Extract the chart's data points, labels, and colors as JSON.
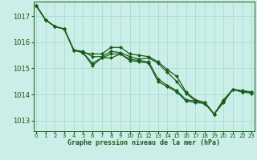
{
  "xlabel": "Graphe pression niveau de la mer (hPa)",
  "ylim": [
    1012.6,
    1017.55
  ],
  "xlim": [
    -0.3,
    23.3
  ],
  "yticks": [
    1013,
    1014,
    1015,
    1016,
    1017
  ],
  "xticks": [
    0,
    1,
    2,
    3,
    4,
    5,
    6,
    7,
    8,
    9,
    10,
    11,
    12,
    13,
    14,
    15,
    16,
    17,
    18,
    19,
    20,
    21,
    22,
    23
  ],
  "background_color": "#cceee8",
  "grid_color": "#99ddcc",
  "line_color": "#1a5c1a",
  "series": [
    [
      1017.4,
      1016.85,
      1016.6,
      1016.5,
      1015.7,
      1015.6,
      1015.2,
      1015.4,
      1015.55,
      1015.55,
      1015.35,
      1015.3,
      1015.25,
      1014.6,
      1014.35,
      1014.15,
      1013.8,
      1013.75,
      1013.7,
      1013.25,
      1013.75,
      1014.2,
      1014.15,
      1014.1
    ],
    [
      1017.4,
      1016.85,
      1016.6,
      1016.5,
      1015.7,
      1015.65,
      1015.45,
      1015.45,
      1015.65,
      1015.6,
      1015.45,
      1015.35,
      1015.4,
      1015.2,
      1014.85,
      1014.5,
      1014.05,
      1013.75,
      1013.7,
      1013.25,
      1013.75,
      1014.2,
      1014.1,
      1014.1
    ],
    [
      1017.4,
      1016.85,
      1016.6,
      1016.5,
      1015.7,
      1015.6,
      1015.55,
      1015.55,
      1015.8,
      1015.8,
      1015.55,
      1015.5,
      1015.45,
      1015.25,
      1014.95,
      1014.7,
      1014.1,
      1013.8,
      1013.7,
      1013.25,
      1013.8,
      1014.2,
      1014.1,
      1014.1
    ],
    [
      1017.4,
      1016.85,
      1016.6,
      1016.5,
      1015.7,
      1015.6,
      1015.1,
      1015.4,
      1015.4,
      1015.55,
      1015.3,
      1015.25,
      1015.2,
      1014.5,
      1014.3,
      1014.1,
      1013.75,
      1013.7,
      1013.65,
      1013.25,
      1013.7,
      1014.2,
      1014.1,
      1014.05
    ]
  ],
  "marker": "D",
  "marker_size": 2.0,
  "line_width": 0.9,
  "ytick_fontsize": 6,
  "xtick_fontsize": 5,
  "xlabel_fontsize": 6
}
